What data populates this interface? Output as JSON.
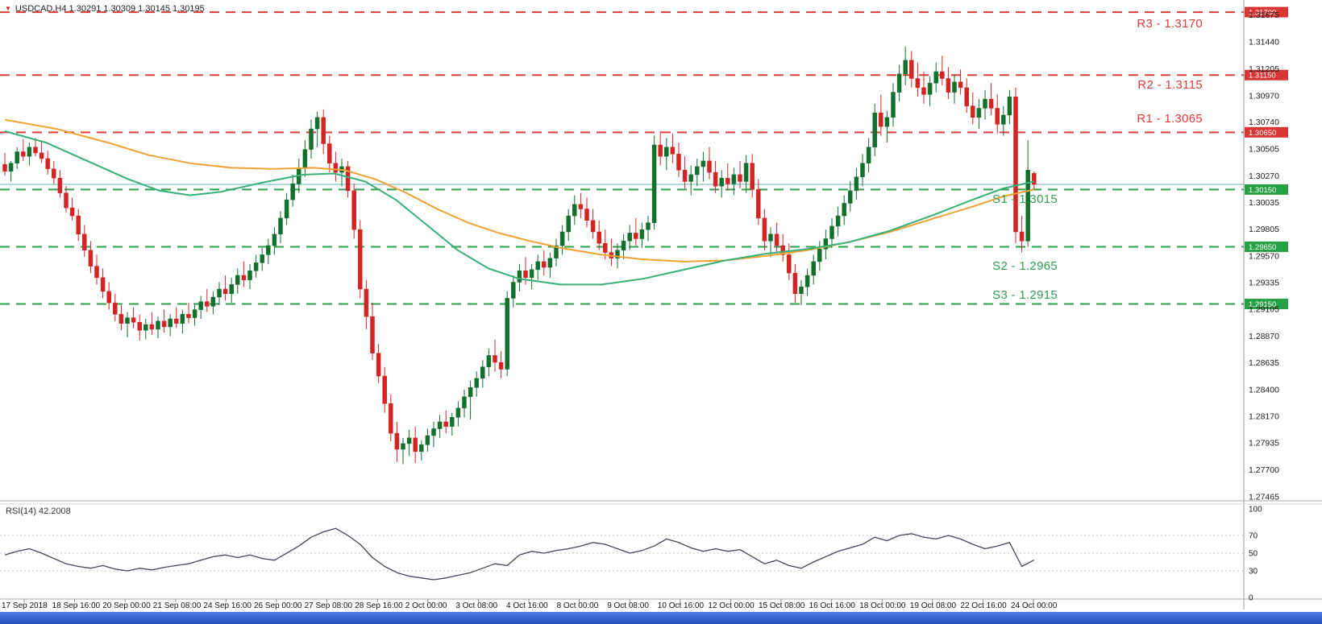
{
  "header": {
    "title": "USDCAD,H4  1.30291 1.30309 1.30145 1.30195"
  },
  "colors": {
    "bull": "#136f2d",
    "bear": "#d32424",
    "resistance": "#e03b3b",
    "support": "#2f9e4f",
    "resistance_tag_bg": "#d93535",
    "support_tag_bg": "#26a145",
    "ma_slow": "#efa133",
    "ma_fast": "#36b078",
    "bid_line": "#69b0ba",
    "rsi_line": "#44445a",
    "axis_text": "#1a1a1a"
  },
  "chart_data": {
    "type": "candlestick",
    "title": "USDCAD,H4",
    "ylim": [
      1.2743,
      1.31806
    ],
    "current_price": 1.30195,
    "levels": [
      {
        "name": "R3",
        "label": "R3 - 1.3170",
        "price": 1.317,
        "tag": "1.31700",
        "type": "resistance"
      },
      {
        "name": "R2",
        "label": "R2 - 1.3115",
        "price": 1.3115,
        "tag": "1.31150",
        "type": "resistance"
      },
      {
        "name": "R1",
        "label": "R1 - 1.3065",
        "price": 1.3065,
        "tag": "1.30650",
        "type": "resistance"
      },
      {
        "name": "S1",
        "label": "S1 -  1.3015",
        "price": 1.3015,
        "tag": "1.30150",
        "type": "support"
      },
      {
        "name": "S2",
        "label": "S2 - 1.2965",
        "price": 1.2965,
        "tag": "1.29650",
        "type": "support"
      },
      {
        "name": "S3",
        "label": "S3 - 1.2915",
        "price": 1.2915,
        "tag": "1.29150",
        "type": "support"
      }
    ],
    "price_axis_labels": [
      "1.31675",
      "1.31440",
      "1.31205",
      "1.30970",
      "1.30740",
      "1.30505",
      "1.30270",
      "1.30035",
      "1.29805",
      "1.29570",
      "1.29335",
      "1.29105",
      "1.28870",
      "1.28635",
      "1.28400",
      "1.28170",
      "1.27935",
      "1.27700",
      "1.27465"
    ],
    "time_axis_labels": [
      "17 Sep 2018",
      "18 Sep 16:00",
      "20 Sep 00:00",
      "21 Sep 08:00",
      "24 Sep 16:00",
      "26 Sep 00:00",
      "27 Sep 08:00",
      "28 Sep 16:00",
      "2 Oct 00:00",
      "3 Oct 08:00",
      "4 Oct 16:00",
      "8 Oct 00:00",
      "9 Oct 08:00",
      "10 Oct 16:00",
      "12 Oct 00:00",
      "15 Oct 08:00",
      "16 Oct 16:00",
      "18 Oct 00:00",
      "19 Oct 08:00",
      "22 Oct 16:00",
      "24 Oct 00:00"
    ],
    "candles": [
      [
        1.3037,
        1.3047,
        1.3027,
        1.3031
      ],
      [
        1.3031,
        1.304,
        1.3022,
        1.3038
      ],
      [
        1.3038,
        1.3052,
        1.3033,
        1.3048
      ],
      [
        1.3048,
        1.3059,
        1.304,
        1.3044
      ],
      [
        1.3044,
        1.3056,
        1.3036,
        1.3052
      ],
      [
        1.3052,
        1.306,
        1.3044,
        1.3047
      ],
      [
        1.3047,
        1.3058,
        1.3038,
        1.3042
      ],
      [
        1.3042,
        1.3049,
        1.3028,
        1.3033
      ],
      [
        1.3033,
        1.304,
        1.302,
        1.3025
      ],
      [
        1.3025,
        1.3032,
        1.3008,
        1.3012
      ],
      [
        1.3012,
        1.3018,
        1.2995,
        1.2999
      ],
      [
        1.2999,
        1.3008,
        1.2988,
        1.2992
      ],
      [
        1.2992,
        1.2998,
        1.297,
        1.2976
      ],
      [
        1.2976,
        1.2984,
        1.2956,
        1.2962
      ],
      [
        1.2962,
        1.297,
        1.2942,
        1.2948
      ],
      [
        1.2948,
        1.2958,
        1.2932,
        1.2938
      ],
      [
        1.2938,
        1.2946,
        1.292,
        1.2926
      ],
      [
        1.2926,
        1.2934,
        1.291,
        1.2916
      ],
      [
        1.2916,
        1.2924,
        1.29,
        1.2906
      ],
      [
        1.2906,
        1.2914,
        1.2892,
        1.2898
      ],
      [
        1.2898,
        1.2908,
        1.2886,
        1.2903
      ],
      [
        1.2903,
        1.2912,
        1.2894,
        1.2899
      ],
      [
        1.2899,
        1.2906,
        1.2883,
        1.2892
      ],
      [
        1.2892,
        1.2902,
        1.2884,
        1.2897
      ],
      [
        1.2897,
        1.2908,
        1.2888,
        1.2893
      ],
      [
        1.2893,
        1.2904,
        1.2885,
        1.29
      ],
      [
        1.29,
        1.291,
        1.289,
        1.2895
      ],
      [
        1.2895,
        1.2906,
        1.2887,
        1.2902
      ],
      [
        1.2902,
        1.2912,
        1.2894,
        1.2898
      ],
      [
        1.2898,
        1.291,
        1.2889,
        1.2906
      ],
      [
        1.2906,
        1.2916,
        1.2898,
        1.2903
      ],
      [
        1.2903,
        1.2914,
        1.2896,
        1.291
      ],
      [
        1.291,
        1.2922,
        1.2902,
        1.2917
      ],
      [
        1.2917,
        1.2928,
        1.2908,
        1.2913
      ],
      [
        1.2913,
        1.2926,
        1.2906,
        1.2921
      ],
      [
        1.2921,
        1.2934,
        1.2914,
        1.2928
      ],
      [
        1.2928,
        1.294,
        1.2918,
        1.2924
      ],
      [
        1.2924,
        1.2938,
        1.2916,
        1.2932
      ],
      [
        1.2932,
        1.2946,
        1.2924,
        1.294
      ],
      [
        1.294,
        1.2952,
        1.293,
        1.2936
      ],
      [
        1.2936,
        1.295,
        1.2928,
        1.2944
      ],
      [
        1.2944,
        1.2958,
        1.2938,
        1.2951
      ],
      [
        1.2951,
        1.2964,
        1.2944,
        1.2958
      ],
      [
        1.2958,
        1.2972,
        1.295,
        1.2966
      ],
      [
        1.2966,
        1.2982,
        1.2958,
        1.2976
      ],
      [
        1.2976,
        1.2996,
        1.2968,
        1.299
      ],
      [
        1.299,
        1.3012,
        1.2984,
        1.3006
      ],
      [
        1.3006,
        1.3028,
        1.3,
        1.302
      ],
      [
        1.302,
        1.3042,
        1.3012,
        1.3034
      ],
      [
        1.3034,
        1.3058,
        1.3026,
        1.305
      ],
      [
        1.305,
        1.3076,
        1.3042,
        1.3068
      ],
      [
        1.3068,
        1.3083,
        1.3052,
        1.3078
      ],
      [
        1.3078,
        1.3085,
        1.3046,
        1.3055
      ],
      [
        1.3055,
        1.3062,
        1.303,
        1.3038
      ],
      [
        1.3038,
        1.3048,
        1.3022,
        1.303
      ],
      [
        1.303,
        1.3042,
        1.3018,
        1.3035
      ],
      [
        1.3035,
        1.304,
        1.3008,
        1.3014
      ],
      [
        1.3014,
        1.302,
        1.2972,
        1.298
      ],
      [
        1.298,
        1.2988,
        1.292,
        1.2928
      ],
      [
        1.2928,
        1.2936,
        1.2893,
        1.2904
      ],
      [
        1.2904,
        1.2916,
        1.2866,
        1.2872
      ],
      [
        1.2872,
        1.288,
        1.2846,
        1.2852
      ],
      [
        1.2852,
        1.286,
        1.282,
        1.2828
      ],
      [
        1.2828,
        1.2836,
        1.2795,
        1.2802
      ],
      [
        1.2802,
        1.2812,
        1.2777,
        1.2788
      ],
      [
        1.2788,
        1.2798,
        1.2775,
        1.2793
      ],
      [
        1.2793,
        1.2805,
        1.2782,
        1.2798
      ],
      [
        1.2798,
        1.2808,
        1.2776,
        1.2786
      ],
      [
        1.2786,
        1.2796,
        1.2778,
        1.2792
      ],
      [
        1.2792,
        1.2806,
        1.2786,
        1.28
      ],
      [
        1.28,
        1.2812,
        1.279,
        1.2806
      ],
      [
        1.2806,
        1.2818,
        1.2798,
        1.2812
      ],
      [
        1.2812,
        1.2822,
        1.2802,
        1.2808
      ],
      [
        1.2808,
        1.282,
        1.28,
        1.2816
      ],
      [
        1.2816,
        1.283,
        1.2808,
        1.2824
      ],
      [
        1.2824,
        1.284,
        1.2816,
        1.2834
      ],
      [
        1.2834,
        1.2848,
        1.2814,
        1.2842
      ],
      [
        1.2842,
        1.2856,
        1.2834,
        1.285
      ],
      [
        1.285,
        1.2866,
        1.2842,
        1.286
      ],
      [
        1.286,
        1.2876,
        1.2852,
        1.287
      ],
      [
        1.287,
        1.2884,
        1.2856,
        1.2864
      ],
      [
        1.2864,
        1.2874,
        1.285,
        1.2858
      ],
      [
        1.2858,
        1.2926,
        1.2852,
        1.292
      ],
      [
        1.292,
        1.294,
        1.2912,
        1.2934
      ],
      [
        1.2934,
        1.295,
        1.2926,
        1.2944
      ],
      [
        1.2944,
        1.2956,
        1.2932,
        1.2938
      ],
      [
        1.2938,
        1.295,
        1.2928,
        1.2945
      ],
      [
        1.2945,
        1.2958,
        1.2936,
        1.2952
      ],
      [
        1.2952,
        1.2962,
        1.294,
        1.2947
      ],
      [
        1.2947,
        1.296,
        1.2938,
        1.2955
      ],
      [
        1.2955,
        1.2972,
        1.2948,
        1.2966
      ],
      [
        1.2966,
        1.2984,
        1.2958,
        1.2978
      ],
      [
        1.2978,
        1.2998,
        1.297,
        1.2992
      ],
      [
        1.2992,
        1.301,
        1.2984,
        1.3002
      ],
      [
        1.3002,
        1.3012,
        1.299,
        1.2998
      ],
      [
        1.2998,
        1.3008,
        1.2982,
        1.2988
      ],
      [
        1.2988,
        1.2998,
        1.2972,
        1.2978
      ],
      [
        1.2978,
        1.2988,
        1.2962,
        1.2968
      ],
      [
        1.2968,
        1.298,
        1.2954,
        1.296
      ],
      [
        1.296,
        1.2972,
        1.2948,
        1.2955
      ],
      [
        1.2955,
        1.2968,
        1.2946,
        1.2962
      ],
      [
        1.2962,
        1.2976,
        1.2954,
        1.297
      ],
      [
        1.297,
        1.2984,
        1.2962,
        1.2977
      ],
      [
        1.2977,
        1.299,
        1.2966,
        1.2972
      ],
      [
        1.2972,
        1.2986,
        1.2964,
        1.298
      ],
      [
        1.298,
        1.2992,
        1.297,
        1.2986
      ],
      [
        1.2986,
        1.3062,
        1.298,
        1.3054
      ],
      [
        1.3054,
        1.3066,
        1.3036,
        1.3044
      ],
      [
        1.3044,
        1.306,
        1.3032,
        1.3052
      ],
      [
        1.3052,
        1.3064,
        1.3038,
        1.3046
      ],
      [
        1.3046,
        1.3056,
        1.3026,
        1.3032
      ],
      [
        1.3032,
        1.3044,
        1.3016,
        1.3022
      ],
      [
        1.3022,
        1.3036,
        1.301,
        1.3028
      ],
      [
        1.3028,
        1.3042,
        1.3018,
        1.3035
      ],
      [
        1.3035,
        1.3048,
        1.3022,
        1.304
      ],
      [
        1.304,
        1.3052,
        1.3024,
        1.303
      ],
      [
        1.303,
        1.304,
        1.3012,
        1.3018
      ],
      [
        1.3018,
        1.3032,
        1.3008,
        1.3025
      ],
      [
        1.3025,
        1.3038,
        1.3014,
        1.302
      ],
      [
        1.302,
        1.3034,
        1.301,
        1.3028
      ],
      [
        1.3028,
        1.304,
        1.3016,
        1.3022
      ],
      [
        1.3022,
        1.3045,
        1.3012,
        1.3038
      ],
      [
        1.3038,
        1.3046,
        1.3008,
        1.3015
      ],
      [
        1.3015,
        1.3024,
        1.2984,
        1.299
      ],
      [
        1.299,
        1.2998,
        1.2962,
        1.297
      ],
      [
        1.297,
        1.2982,
        1.2956,
        1.2976
      ],
      [
        1.2976,
        1.2986,
        1.296,
        1.2966
      ],
      [
        1.2966,
        1.2976,
        1.2952,
        1.2958
      ],
      [
        1.2958,
        1.2968,
        1.2936,
        1.2942
      ],
      [
        1.2942,
        1.295,
        1.2916,
        1.2924
      ],
      [
        1.2924,
        1.2936,
        1.2914,
        1.293
      ],
      [
        1.293,
        1.2946,
        1.2922,
        1.294
      ],
      [
        1.294,
        1.2958,
        1.2932,
        1.2952
      ],
      [
        1.2952,
        1.297,
        1.2944,
        1.2963
      ],
      [
        1.2963,
        1.298,
        1.2954,
        1.2972
      ],
      [
        1.2972,
        1.299,
        1.2964,
        1.2983
      ],
      [
        1.2983,
        1.3,
        1.2974,
        1.2992
      ],
      [
        1.2992,
        1.301,
        1.2984,
        1.3003
      ],
      [
        1.3003,
        1.3022,
        1.2996,
        1.3014
      ],
      [
        1.3014,
        1.3034,
        1.3006,
        1.3026
      ],
      [
        1.3026,
        1.3046,
        1.3018,
        1.3038
      ],
      [
        1.3038,
        1.306,
        1.303,
        1.3052
      ],
      [
        1.3052,
        1.309,
        1.3044,
        1.3082
      ],
      [
        1.3082,
        1.3098,
        1.3062,
        1.307
      ],
      [
        1.307,
        1.3084,
        1.3056,
        1.3078
      ],
      [
        1.3078,
        1.3108,
        1.307,
        1.31
      ],
      [
        1.31,
        1.3124,
        1.3092,
        1.3116
      ],
      [
        1.3116,
        1.314,
        1.3106,
        1.3128
      ],
      [
        1.3128,
        1.3136,
        1.3104,
        1.3112
      ],
      [
        1.3112,
        1.3126,
        1.3096,
        1.3104
      ],
      [
        1.3104,
        1.3118,
        1.309,
        1.3098
      ],
      [
        1.3098,
        1.3114,
        1.3088,
        1.3108
      ],
      [
        1.3108,
        1.3126,
        1.31,
        1.3118
      ],
      [
        1.3118,
        1.3132,
        1.3106,
        1.3112
      ],
      [
        1.3112,
        1.3122,
        1.3094,
        1.31
      ],
      [
        1.31,
        1.3116,
        1.309,
        1.3109
      ],
      [
        1.3109,
        1.312,
        1.3098,
        1.3104
      ],
      [
        1.3104,
        1.3112,
        1.3082,
        1.3088
      ],
      [
        1.3088,
        1.31,
        1.3072,
        1.3078
      ],
      [
        1.3078,
        1.3094,
        1.3068,
        1.3086
      ],
      [
        1.3086,
        1.3102,
        1.3076,
        1.3094
      ],
      [
        1.3094,
        1.3108,
        1.308,
        1.3086
      ],
      [
        1.3086,
        1.3098,
        1.3064,
        1.3072
      ],
      [
        1.3072,
        1.3088,
        1.3062,
        1.308
      ],
      [
        1.308,
        1.3102,
        1.3072,
        1.3096
      ],
      [
        1.3096,
        1.3104,
        1.2968,
        1.2978
      ],
      [
        1.2978,
        1.2992,
        1.296,
        1.297
      ],
      [
        1.297,
        1.3058,
        1.2965,
        1.3032
      ],
      [
        1.30291,
        1.30309,
        1.30145,
        1.30195
      ]
    ],
    "ma_slow": [
      [
        0,
        1.3076
      ],
      [
        0.05,
        1.3068
      ],
      [
        0.1,
        1.3056
      ],
      [
        0.14,
        1.3045
      ],
      [
        0.18,
        1.3038
      ],
      [
        0.22,
        1.3034
      ],
      [
        0.26,
        1.3033
      ],
      [
        0.3,
        1.3034
      ],
      [
        0.33,
        1.3032
      ],
      [
        0.36,
        1.3024
      ],
      [
        0.39,
        1.3012
      ],
      [
        0.42,
        1.2998
      ],
      [
        0.45,
        1.2986
      ],
      [
        0.48,
        1.2977
      ],
      [
        0.51,
        1.297
      ],
      [
        0.54,
        1.2964
      ],
      [
        0.58,
        1.2958
      ],
      [
        0.62,
        1.2954
      ],
      [
        0.66,
        1.2952
      ],
      [
        0.7,
        1.2953
      ],
      [
        0.74,
        1.2957
      ],
      [
        0.78,
        1.2962
      ],
      [
        0.82,
        1.2969
      ],
      [
        0.86,
        1.2978
      ],
      [
        0.9,
        1.2989
      ],
      [
        0.94,
        1.3
      ],
      [
        0.97,
        1.3009
      ],
      [
        1.0,
        1.3015
      ]
    ],
    "ma_fast": [
      [
        0,
        1.3066
      ],
      [
        0.04,
        1.3056
      ],
      [
        0.08,
        1.304
      ],
      [
        0.12,
        1.3024
      ],
      [
        0.15,
        1.3014
      ],
      [
        0.18,
        1.301
      ],
      [
        0.21,
        1.3013
      ],
      [
        0.25,
        1.3021
      ],
      [
        0.29,
        1.3028
      ],
      [
        0.32,
        1.3029
      ],
      [
        0.35,
        1.3022
      ],
      [
        0.38,
        1.3006
      ],
      [
        0.41,
        1.2984
      ],
      [
        0.44,
        1.2962
      ],
      [
        0.47,
        1.2946
      ],
      [
        0.5,
        1.2937
      ],
      [
        0.54,
        1.2932
      ],
      [
        0.58,
        1.2932
      ],
      [
        0.62,
        1.2937
      ],
      [
        0.66,
        1.2945
      ],
      [
        0.7,
        1.2953
      ],
      [
        0.74,
        1.2959
      ],
      [
        0.78,
        1.2963
      ],
      [
        0.82,
        1.2969
      ],
      [
        0.86,
        1.2979
      ],
      [
        0.9,
        1.2992
      ],
      [
        0.94,
        1.3006
      ],
      [
        0.97,
        1.3016
      ],
      [
        1.0,
        1.3022
      ]
    ],
    "rsi": {
      "label": "RSI(14) 42.2008",
      "period": 14,
      "value": 42.2008,
      "ylim": [
        0,
        100
      ],
      "guides": [
        70,
        50,
        30
      ],
      "scale_labels": [
        "100",
        "70",
        "50",
        "30",
        "0"
      ],
      "values": [
        48,
        52,
        55,
        50,
        44,
        38,
        35,
        33,
        36,
        32,
        30,
        33,
        31,
        34,
        36,
        38,
        42,
        46,
        48,
        45,
        48,
        44,
        42,
        50,
        58,
        68,
        74,
        78,
        70,
        60,
        45,
        35,
        28,
        24,
        22,
        20,
        22,
        25,
        28,
        33,
        38,
        36,
        48,
        52,
        50,
        53,
        55,
        58,
        62,
        60,
        55,
        50,
        53,
        58,
        66,
        62,
        56,
        52,
        55,
        52,
        54,
        46,
        38,
        42,
        36,
        33,
        40,
        46,
        52,
        56,
        60,
        68,
        64,
        70,
        72,
        68,
        66,
        70,
        66,
        60,
        55,
        58,
        62,
        35,
        42.2
      ]
    }
  }
}
